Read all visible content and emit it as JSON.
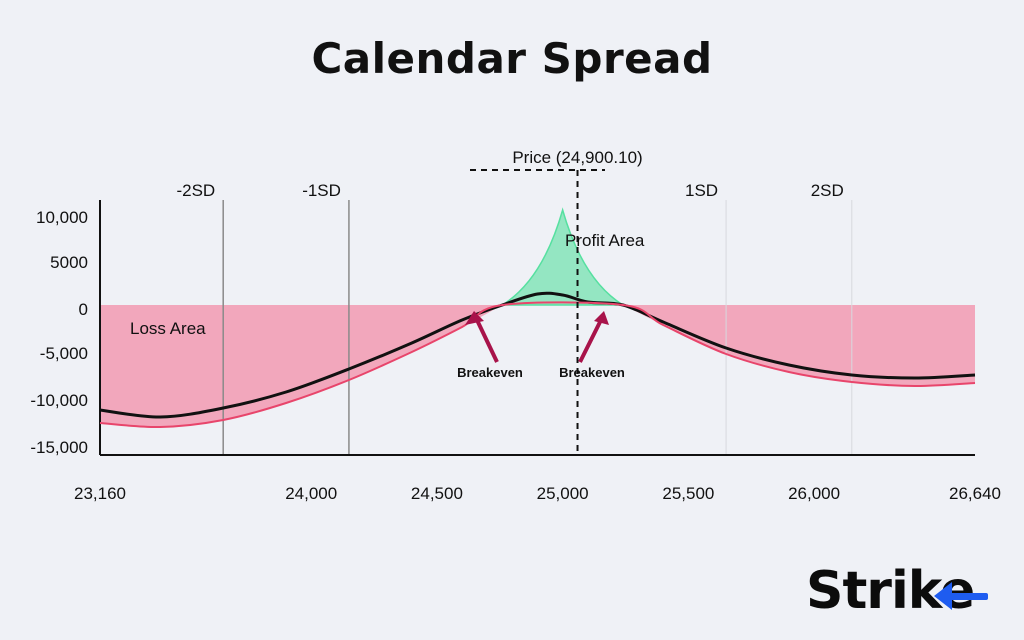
{
  "chart_data": {
    "type": "area",
    "title": "Calendar Spread",
    "current_price_label": "Price (24,900.10)",
    "current_price": 24900.1,
    "x_tick_labels": [
      "23,160",
      "24,000",
      "24,500",
      "25,000",
      "25,500",
      "26,000",
      "26,640"
    ],
    "x_tick_values": [
      23160,
      24000,
      24500,
      25000,
      25500,
      26000,
      26640
    ],
    "xlim": [
      23160,
      26640
    ],
    "y_tick_labels": [
      "10,000",
      "5000",
      "0",
      "-5,000",
      "-10,000",
      "-15,000"
    ],
    "y_tick_values": [
      10000,
      5000,
      0,
      -5000,
      -10000,
      -15000
    ],
    "ylim": [
      -15000,
      10500
    ],
    "sd_lines": [
      {
        "label": "-2SD",
        "x": 23650
      },
      {
        "label": "-1SD",
        "x": 24150
      },
      {
        "label": "1SD",
        "x": 25650
      },
      {
        "label": "2SD",
        "x": 26150
      }
    ],
    "series": [
      {
        "x": [
          23160,
          23400,
          23650,
          23900,
          24150,
          24400,
          24600,
          24760,
          24900,
          25000,
          25100,
          25240,
          25400,
          25650,
          25900,
          26150,
          26400,
          26640
        ],
        "y": [
          -10500,
          -11200,
          -10300,
          -8700,
          -6400,
          -3800,
          -1500,
          0,
          1100,
          1000,
          300,
          0,
          -1700,
          -4300,
          -6000,
          -7000,
          -7300,
          -7000
        ],
        "color": "#111111"
      },
      {
        "x": [
          23160,
          23400,
          23650,
          23900,
          24150,
          24400,
          24600,
          24760,
          25240,
          25400,
          25650,
          25900,
          26150,
          26400,
          26640
        ],
        "y": [
          -11800,
          -12200,
          -11500,
          -9800,
          -7500,
          -4700,
          -2200,
          0,
          0,
          -2000,
          -4900,
          -6700,
          -7700,
          -8100,
          -7800
        ],
        "color": "#e8456b"
      }
    ],
    "profit_area": {
      "label": "Profit Area",
      "x": [
        24760,
        24900,
        25000,
        25100,
        25240
      ],
      "y": [
        0,
        5000,
        9500,
        5000,
        0
      ],
      "color": "#56e0a0"
    },
    "loss_area": {
      "label": "Loss Area",
      "color": "#f2a7bc"
    },
    "annotations": [
      {
        "text": "Breakeven",
        "x": 24760
      },
      {
        "text": "Breakeven",
        "x": 25240
      }
    ]
  },
  "brand": {
    "name": "Strike",
    "accent_color": "#1e5cf0"
  }
}
